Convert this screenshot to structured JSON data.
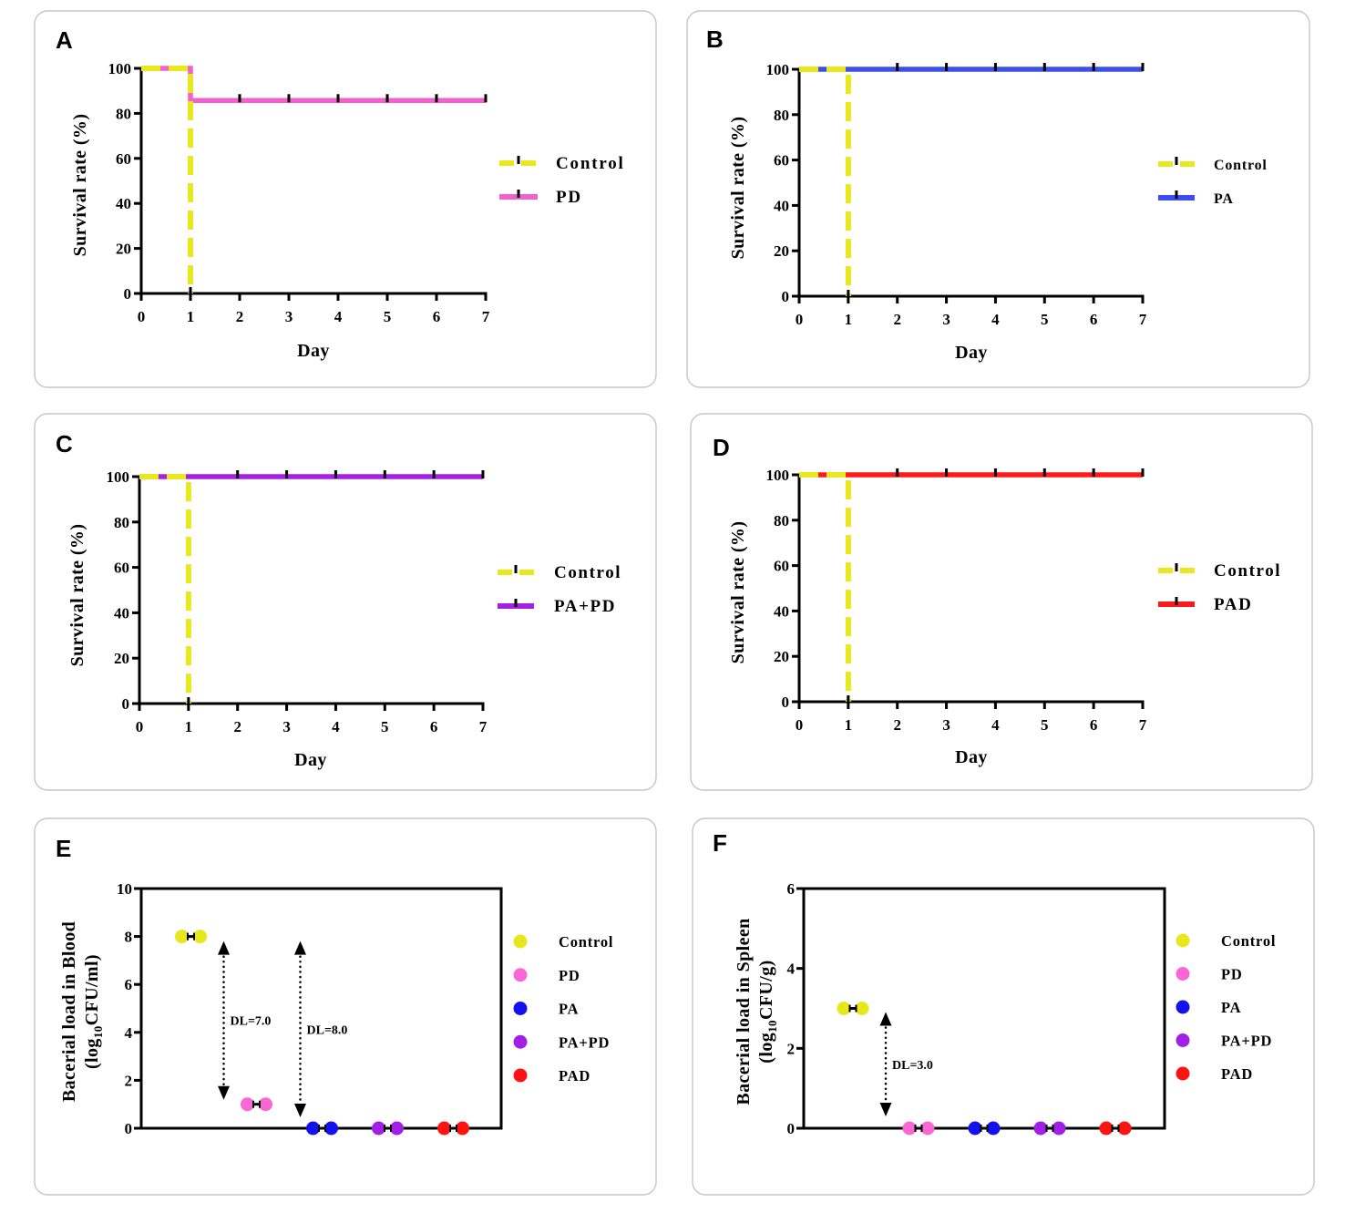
{
  "figure": {
    "background": "#ffffff",
    "frame_color": "#c6c6c6",
    "axis_color": "#000000"
  },
  "chart_data": [
    {
      "panel": "A",
      "type": "line",
      "xlabel": "Day",
      "ylabel": "Survival rate (%)",
      "xlim": [
        0,
        7
      ],
      "ylim": [
        0,
        100
      ],
      "xticks": [
        0,
        1,
        2,
        3,
        4,
        5,
        6,
        7
      ],
      "yticks": [
        0,
        20,
        40,
        60,
        80,
        100
      ],
      "series": [
        {
          "name": "Control",
          "color": "#e8e81c",
          "dashed": true,
          "x": [
            0,
            1,
            1
          ],
          "y": [
            100,
            100,
            0
          ],
          "censored": [
            1
          ]
        },
        {
          "name": "PD",
          "color": "#f25fd0",
          "dashed": false,
          "x": [
            0,
            1,
            1,
            7
          ],
          "y": [
            100,
            100,
            85.7,
            85.7
          ],
          "censored": [
            2,
            3,
            4,
            5,
            6,
            7
          ]
        }
      ]
    },
    {
      "panel": "B",
      "type": "line",
      "xlabel": "Day",
      "ylabel": "Survival rate (%)",
      "xlim": [
        0,
        7
      ],
      "ylim": [
        0,
        100
      ],
      "xticks": [
        0,
        1,
        2,
        3,
        4,
        5,
        6,
        7
      ],
      "yticks": [
        0,
        20,
        40,
        60,
        80,
        100
      ],
      "series": [
        {
          "name": "Control",
          "color": "#e8e81c",
          "dashed": true,
          "x": [
            0,
            1,
            1
          ],
          "y": [
            100,
            100,
            0
          ],
          "censored": [
            1
          ]
        },
        {
          "name": "PA",
          "color": "#3c4ef0",
          "dashed": false,
          "x": [
            0,
            7
          ],
          "y": [
            100,
            100
          ],
          "censored": [
            2,
            3,
            4,
            5,
            6,
            7
          ]
        }
      ]
    },
    {
      "panel": "C",
      "type": "line",
      "xlabel": "Day",
      "ylabel": "Survival rate (%)",
      "xlim": [
        0,
        7
      ],
      "ylim": [
        0,
        100
      ],
      "xticks": [
        0,
        1,
        2,
        3,
        4,
        5,
        6,
        7
      ],
      "yticks": [
        0,
        20,
        40,
        60,
        80,
        100
      ],
      "series": [
        {
          "name": "Control",
          "color": "#e8e81c",
          "dashed": true,
          "x": [
            0,
            1,
            1
          ],
          "y": [
            100,
            100,
            0
          ],
          "censored": [
            1
          ]
        },
        {
          "name": "PA+PD",
          "color": "#a520df",
          "dashed": false,
          "x": [
            0,
            7
          ],
          "y": [
            100,
            100
          ],
          "censored": [
            2,
            3,
            4,
            5,
            6,
            7
          ]
        }
      ]
    },
    {
      "panel": "D",
      "type": "line",
      "xlabel": "Day",
      "ylabel": "Survival rate (%)",
      "xlim": [
        0,
        7
      ],
      "ylim": [
        0,
        100
      ],
      "xticks": [
        0,
        1,
        2,
        3,
        4,
        5,
        6,
        7
      ],
      "yticks": [
        0,
        20,
        40,
        60,
        80,
        100
      ],
      "series": [
        {
          "name": "Control",
          "color": "#e8e81c",
          "dashed": true,
          "x": [
            0,
            1,
            1
          ],
          "y": [
            100,
            100,
            0
          ],
          "censored": [
            1
          ]
        },
        {
          "name": "PAD",
          "color": "#ff1a1a",
          "dashed": false,
          "x": [
            0,
            7
          ],
          "y": [
            100,
            100
          ],
          "censored": [
            2,
            3,
            4,
            5,
            6,
            7
          ]
        }
      ]
    },
    {
      "panel": "E",
      "type": "scatter",
      "ylabel": {
        "line1": "Bacerial load in Blood",
        "prefix": "(log",
        "sub": "10",
        "suffix": "CFU/ml)"
      },
      "ylim": [
        0,
        10
      ],
      "yticks": [
        0,
        2,
        4,
        6,
        8,
        10
      ],
      "categories": [
        "Control",
        "PD",
        "PA",
        "PA+PD",
        "PAD"
      ],
      "colors": [
        "#e7e71b",
        "#fb66d6",
        "#1212ee",
        "#a21fe6",
        "#ff1212"
      ],
      "values": [
        [
          8,
          8
        ],
        [
          1,
          1
        ],
        [
          0,
          0
        ],
        [
          0,
          0
        ],
        [
          0,
          0
        ]
      ],
      "annotations": [
        {
          "label": "DL=7.0",
          "between": [
            0,
            1
          ],
          "from": 8,
          "to": 1
        },
        {
          "label": "DL=8.0",
          "between": [
            1,
            2
          ],
          "from": 8,
          "to": 0
        }
      ]
    },
    {
      "panel": "F",
      "type": "scatter",
      "ylabel": {
        "line1": "Bacerial load in Spleen",
        "prefix": "(log",
        "sub": "10",
        "suffix": "CFU/g)"
      },
      "ylim": [
        0,
        6
      ],
      "yticks": [
        0,
        2,
        4,
        6
      ],
      "categories": [
        "Control",
        "PD",
        "PA",
        "PA+PD",
        "PAD"
      ],
      "colors": [
        "#e7e71b",
        "#fb66d6",
        "#1212ee",
        "#a21fe6",
        "#ff1212"
      ],
      "values": [
        [
          3,
          3
        ],
        [
          0,
          0
        ],
        [
          0,
          0
        ],
        [
          0,
          0
        ],
        [
          0,
          0
        ]
      ],
      "annotations": [
        {
          "label": "DL=3.0",
          "between": [
            0,
            1
          ],
          "from": 3,
          "to": 0
        }
      ]
    }
  ]
}
